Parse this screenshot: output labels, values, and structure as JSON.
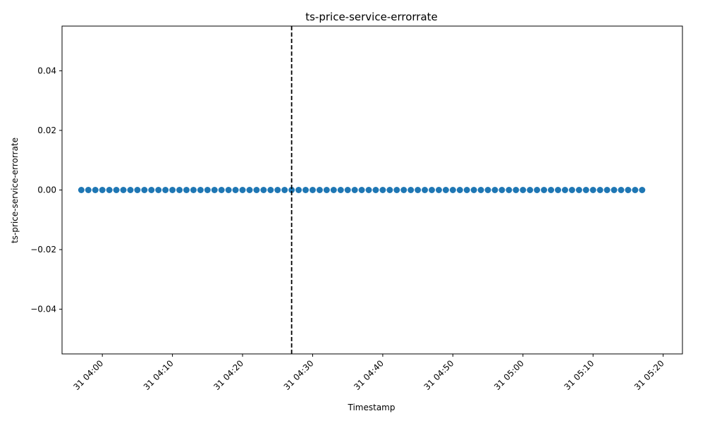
{
  "chart_data": {
    "type": "scatter",
    "title": "ts-price-service-errorrate",
    "xlabel": "Timestamp",
    "ylabel": "ts-price-service-errorrate",
    "x_range": [
      "31 03:54:15",
      "31 05:22:45"
    ],
    "x_start": "31 03:57",
    "x_end": "31 05:17",
    "y_value": 0.0,
    "ylim": [
      -0.055,
      0.055
    ],
    "point_count": 81,
    "vertical_line": {
      "x": "31 04:27",
      "style": "dashed",
      "color": "#000000"
    },
    "x_ticks": [
      "31 04:00",
      "31 04:10",
      "31 04:20",
      "31 04:30",
      "31 04:40",
      "31 04:50",
      "31 05:00",
      "31 05:10",
      "31 05:20"
    ],
    "y_ticks": [
      "0.04",
      "0.02",
      "0.00",
      "−0.02",
      "−0.04"
    ],
    "y_tick_values": [
      0.04,
      0.02,
      0.0,
      -0.02,
      -0.04
    ],
    "grid": false,
    "marker_color": "#1f77b4"
  }
}
